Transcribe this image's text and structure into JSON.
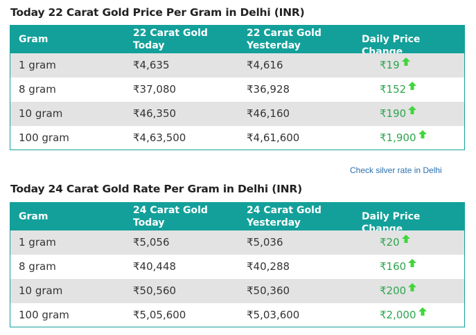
{
  "rupee_symbol": "₹",
  "colors": {
    "header_bg": "#13a09a",
    "up_arrow": "#3fd63a",
    "change_text": "#2ea44f",
    "link": "#2a6fb0",
    "alt_row": "#e3e3e3"
  },
  "table_22k": {
    "title": "Today 22 Carat Gold Price Per Gram in Delhi (INR)",
    "headers": [
      "Gram",
      "22 Carat Gold\nToday",
      "22 Carat Gold\nYesterday",
      "Daily Price Change"
    ],
    "rows": [
      {
        "gram": "1 gram",
        "today": "4,635",
        "yesterday": "4,616",
        "change": "19",
        "direction": "up-arrow-icon"
      },
      {
        "gram": "8 gram",
        "today": "37,080",
        "yesterday": "36,928",
        "change": "152",
        "direction": "up-arrow-icon"
      },
      {
        "gram": "10 gram",
        "today": "46,350",
        "yesterday": "46,160",
        "change": "190",
        "direction": "up-arrow-icon"
      },
      {
        "gram": "100 gram",
        "today": "4,63,500",
        "yesterday": "4,61,600",
        "change": "1,900",
        "direction": "up-arrow-icon"
      }
    ]
  },
  "silver_link": "Check silver rate in Delhi",
  "table_24k": {
    "title": "Today 24 Carat Gold Rate Per Gram in Delhi (INR)",
    "headers": [
      "Gram",
      "24 Carat Gold\nToday",
      "24 Carat Gold\nYesterday",
      "Daily Price Change"
    ],
    "rows": [
      {
        "gram": "1 gram",
        "today": "5,056",
        "yesterday": "5,036",
        "change": "20",
        "direction": "up-arrow-icon"
      },
      {
        "gram": "8 gram",
        "today": "40,448",
        "yesterday": "40,288",
        "change": "160",
        "direction": "up-arrow-icon"
      },
      {
        "gram": "10 gram",
        "today": "50,560",
        "yesterday": "50,360",
        "change": "200",
        "direction": "up-arrow-icon"
      },
      {
        "gram": "100 gram",
        "today": "5,05,600",
        "yesterday": "5,03,600",
        "change": "2,000",
        "direction": "up-arrow-icon"
      }
    ]
  }
}
